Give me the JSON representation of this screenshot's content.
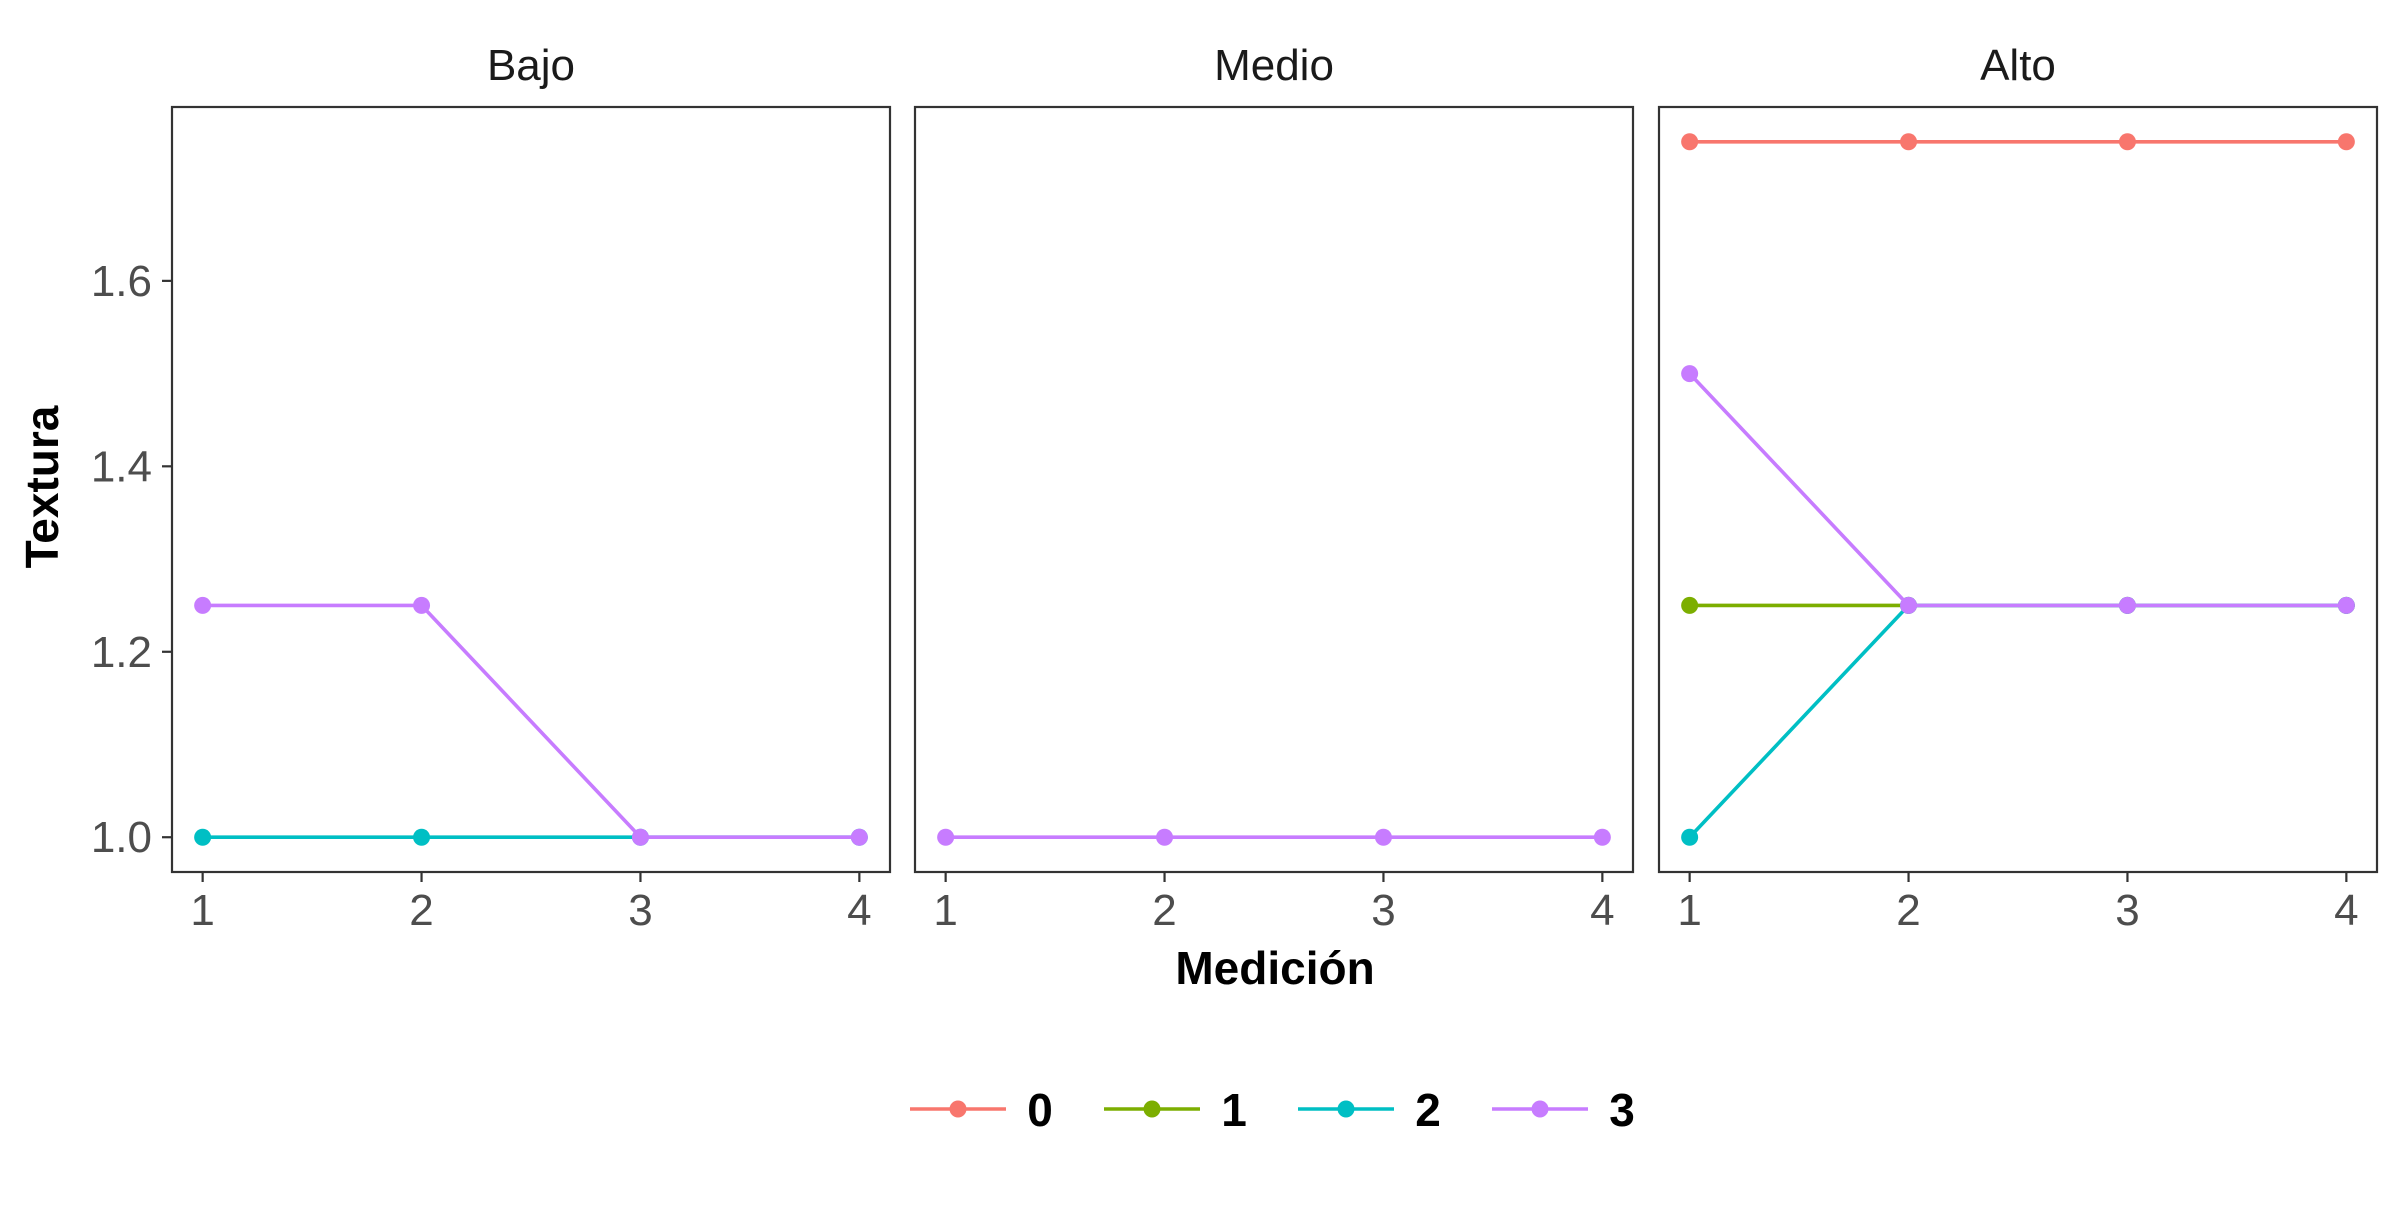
{
  "chart_data": {
    "type": "line",
    "xlabel": "Medición",
    "ylabel": "Textura",
    "x_ticks": [
      1,
      2,
      3,
      4
    ],
    "y_ticks": [
      1.0,
      1.2,
      1.4,
      1.6
    ],
    "y_tick_labels": [
      "1.0",
      "1.2",
      "1.4",
      "1.6"
    ],
    "xlim": [
      0.86,
      4.14
    ],
    "ylim": [
      0.9625,
      1.7875
    ],
    "legend_position": "bottom",
    "legend": [
      {
        "name": "0",
        "color": "#F8766D"
      },
      {
        "name": "1",
        "color": "#7CAE00"
      },
      {
        "name": "2",
        "color": "#00BFC4"
      },
      {
        "name": "3",
        "color": "#C77CFF"
      }
    ],
    "panels": [
      {
        "label": "Bajo",
        "series": [
          {
            "name": "2",
            "x": [
              1,
              2,
              3,
              4
            ],
            "y": [
              1.0,
              1.0,
              1.0,
              1.0
            ]
          },
          {
            "name": "3",
            "x": [
              1,
              2,
              3,
              4
            ],
            "y": [
              1.25,
              1.25,
              1.0,
              1.0
            ]
          }
        ]
      },
      {
        "label": "Medio",
        "series": [
          {
            "name": "3",
            "x": [
              1,
              2,
              3,
              4
            ],
            "y": [
              1.0,
              1.0,
              1.0,
              1.0
            ]
          }
        ]
      },
      {
        "label": "Alto",
        "series": [
          {
            "name": "0",
            "x": [
              1,
              2,
              3,
              4
            ],
            "y": [
              1.75,
              1.75,
              1.75,
              1.75
            ]
          },
          {
            "name": "1",
            "x": [
              1,
              2,
              3,
              4
            ],
            "y": [
              1.25,
              1.25,
              1.25,
              1.25
            ]
          },
          {
            "name": "2",
            "x": [
              1,
              2,
              3,
              4
            ],
            "y": [
              1.0,
              1.25,
              1.25,
              1.25
            ]
          },
          {
            "name": "3",
            "x": [
              1,
              2,
              3,
              4
            ],
            "y": [
              1.5,
              1.25,
              1.25,
              1.25
            ]
          }
        ]
      }
    ]
  }
}
